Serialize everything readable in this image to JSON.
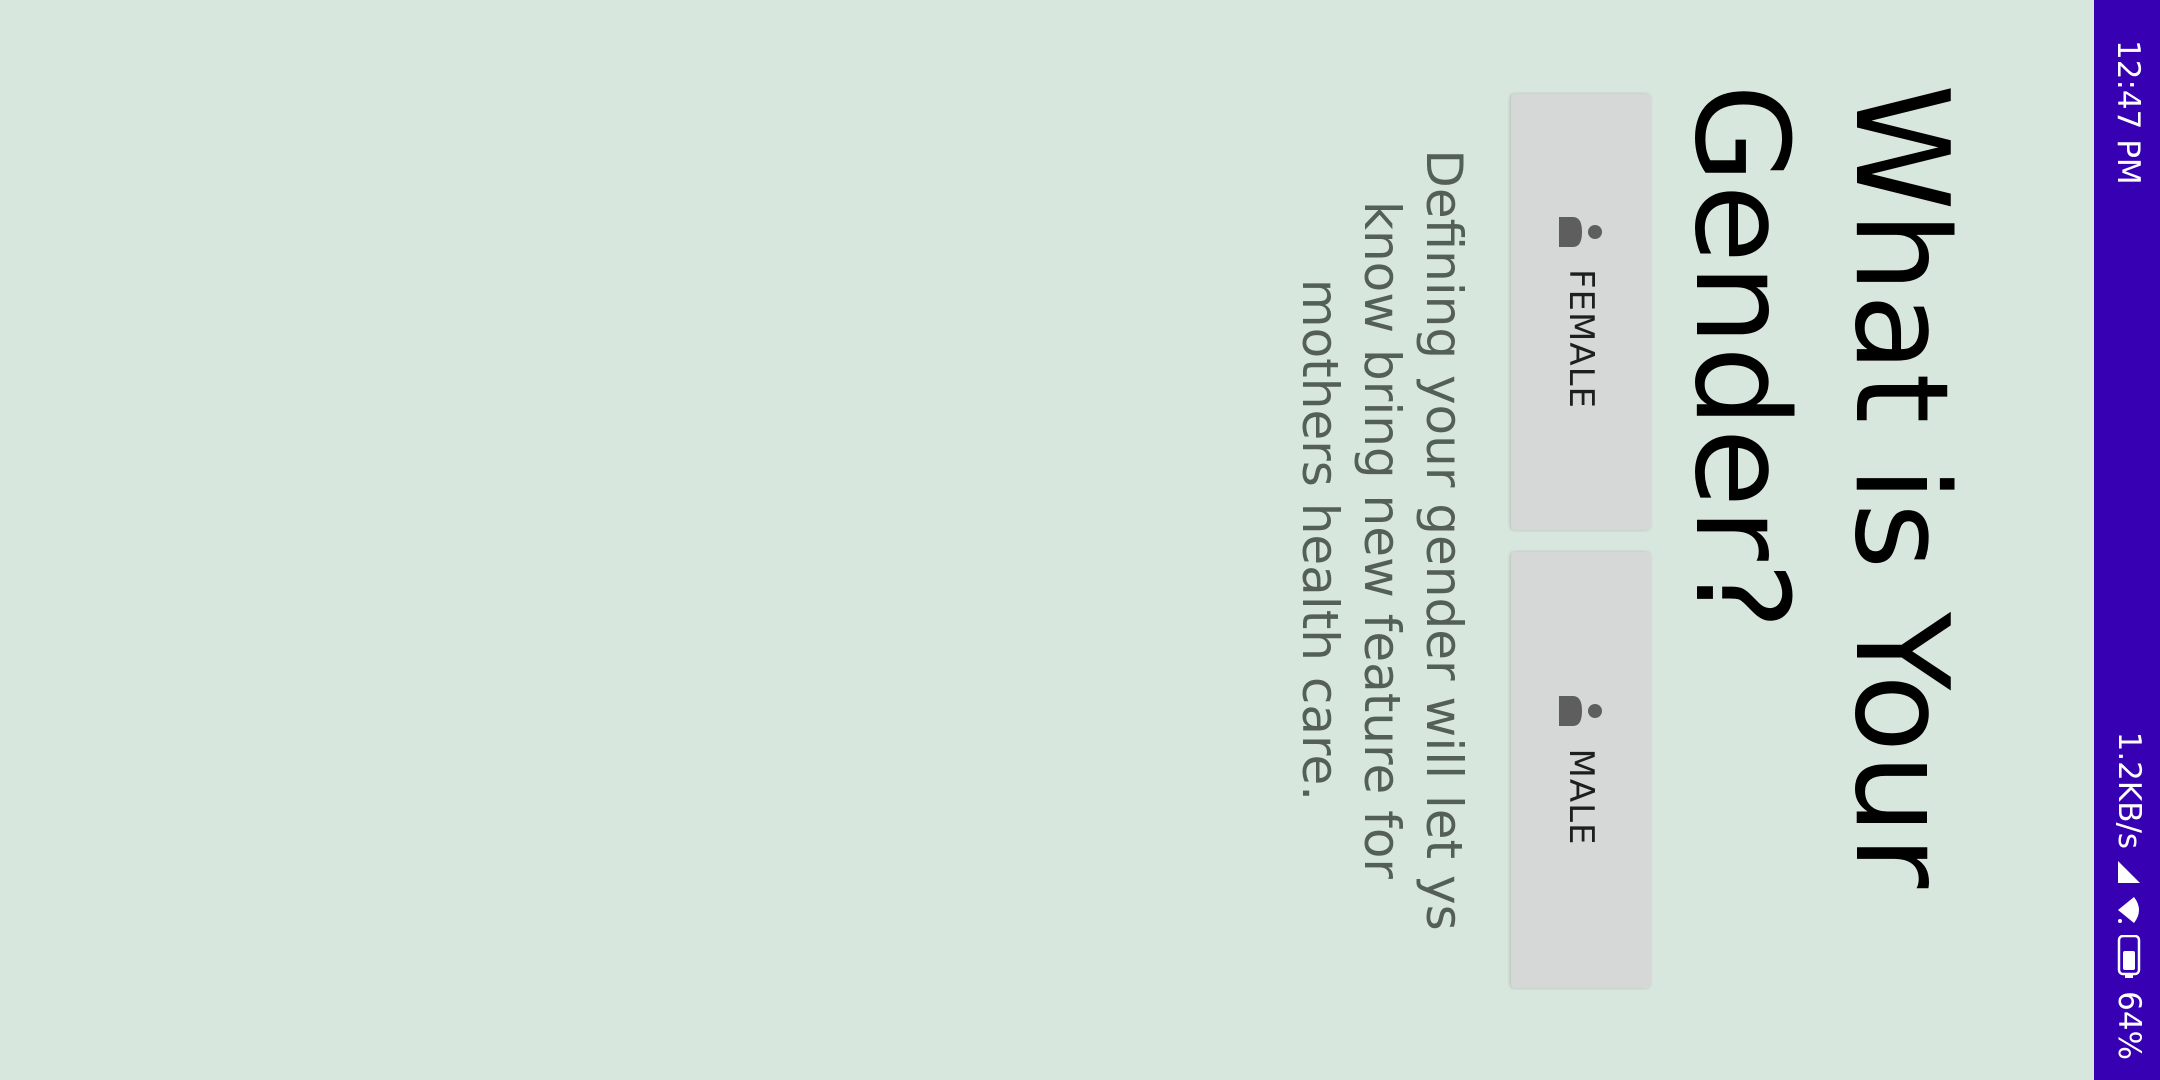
{
  "status_bar": {
    "time": "12:47 PM",
    "network_speed": "1.2KB/s",
    "battery": "64%",
    "icons": [
      "cellular-signal-icon",
      "wifi-icon",
      "battery-icon"
    ],
    "background_color": "#3700b3"
  },
  "headline": "What is Your Gender?",
  "buttons": {
    "male_label": "MALE",
    "female_label": "FEMALE",
    "icon": "person-icon"
  },
  "description": "Defining your gender will let ys know bring new feature for mothers health care.",
  "colors": {
    "background": "#d8e7dd",
    "button": "#d6d8d7",
    "description_text": "#545f58"
  }
}
